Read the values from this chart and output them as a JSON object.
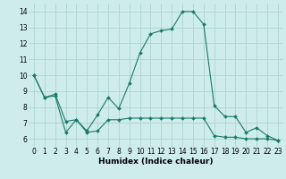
{
  "line1_x": [
    0,
    1,
    2,
    3,
    4,
    5,
    6,
    7,
    8,
    9,
    10,
    11,
    12,
    13,
    14,
    15,
    16,
    17,
    18,
    19,
    20,
    21,
    22,
    23
  ],
  "line1_y": [
    10.0,
    8.6,
    8.7,
    6.4,
    7.2,
    6.5,
    7.5,
    8.6,
    7.9,
    9.5,
    11.4,
    12.6,
    12.8,
    12.9,
    14.0,
    14.0,
    13.2,
    8.1,
    7.4,
    7.4,
    6.4,
    6.7,
    6.2,
    5.9
  ],
  "line2_x": [
    0,
    1,
    2,
    3,
    4,
    5,
    6,
    7,
    8,
    9,
    10,
    11,
    12,
    13,
    14,
    15,
    16,
    17,
    18,
    19,
    20,
    21,
    22,
    23
  ],
  "line2_y": [
    10.0,
    8.6,
    8.8,
    7.1,
    7.2,
    6.4,
    6.5,
    7.2,
    7.2,
    7.3,
    7.3,
    7.3,
    7.3,
    7.3,
    7.3,
    7.3,
    7.3,
    6.2,
    6.1,
    6.1,
    6.0,
    6.0,
    6.0,
    5.9
  ],
  "line_color": "#1a7a6a",
  "bg_color": "#ceecea",
  "grid_color": "#aed4d0",
  "xlabel": "Humidex (Indice chaleur)",
  "xlim": [
    -0.5,
    23.5
  ],
  "ylim": [
    5.5,
    14.5
  ],
  "yticks": [
    6,
    7,
    8,
    9,
    10,
    11,
    12,
    13,
    14
  ],
  "xticks": [
    0,
    1,
    2,
    3,
    4,
    5,
    6,
    7,
    8,
    9,
    10,
    11,
    12,
    13,
    14,
    15,
    16,
    17,
    18,
    19,
    20,
    21,
    22,
    23
  ],
  "tick_fontsize": 5.5,
  "xlabel_fontsize": 6.5
}
